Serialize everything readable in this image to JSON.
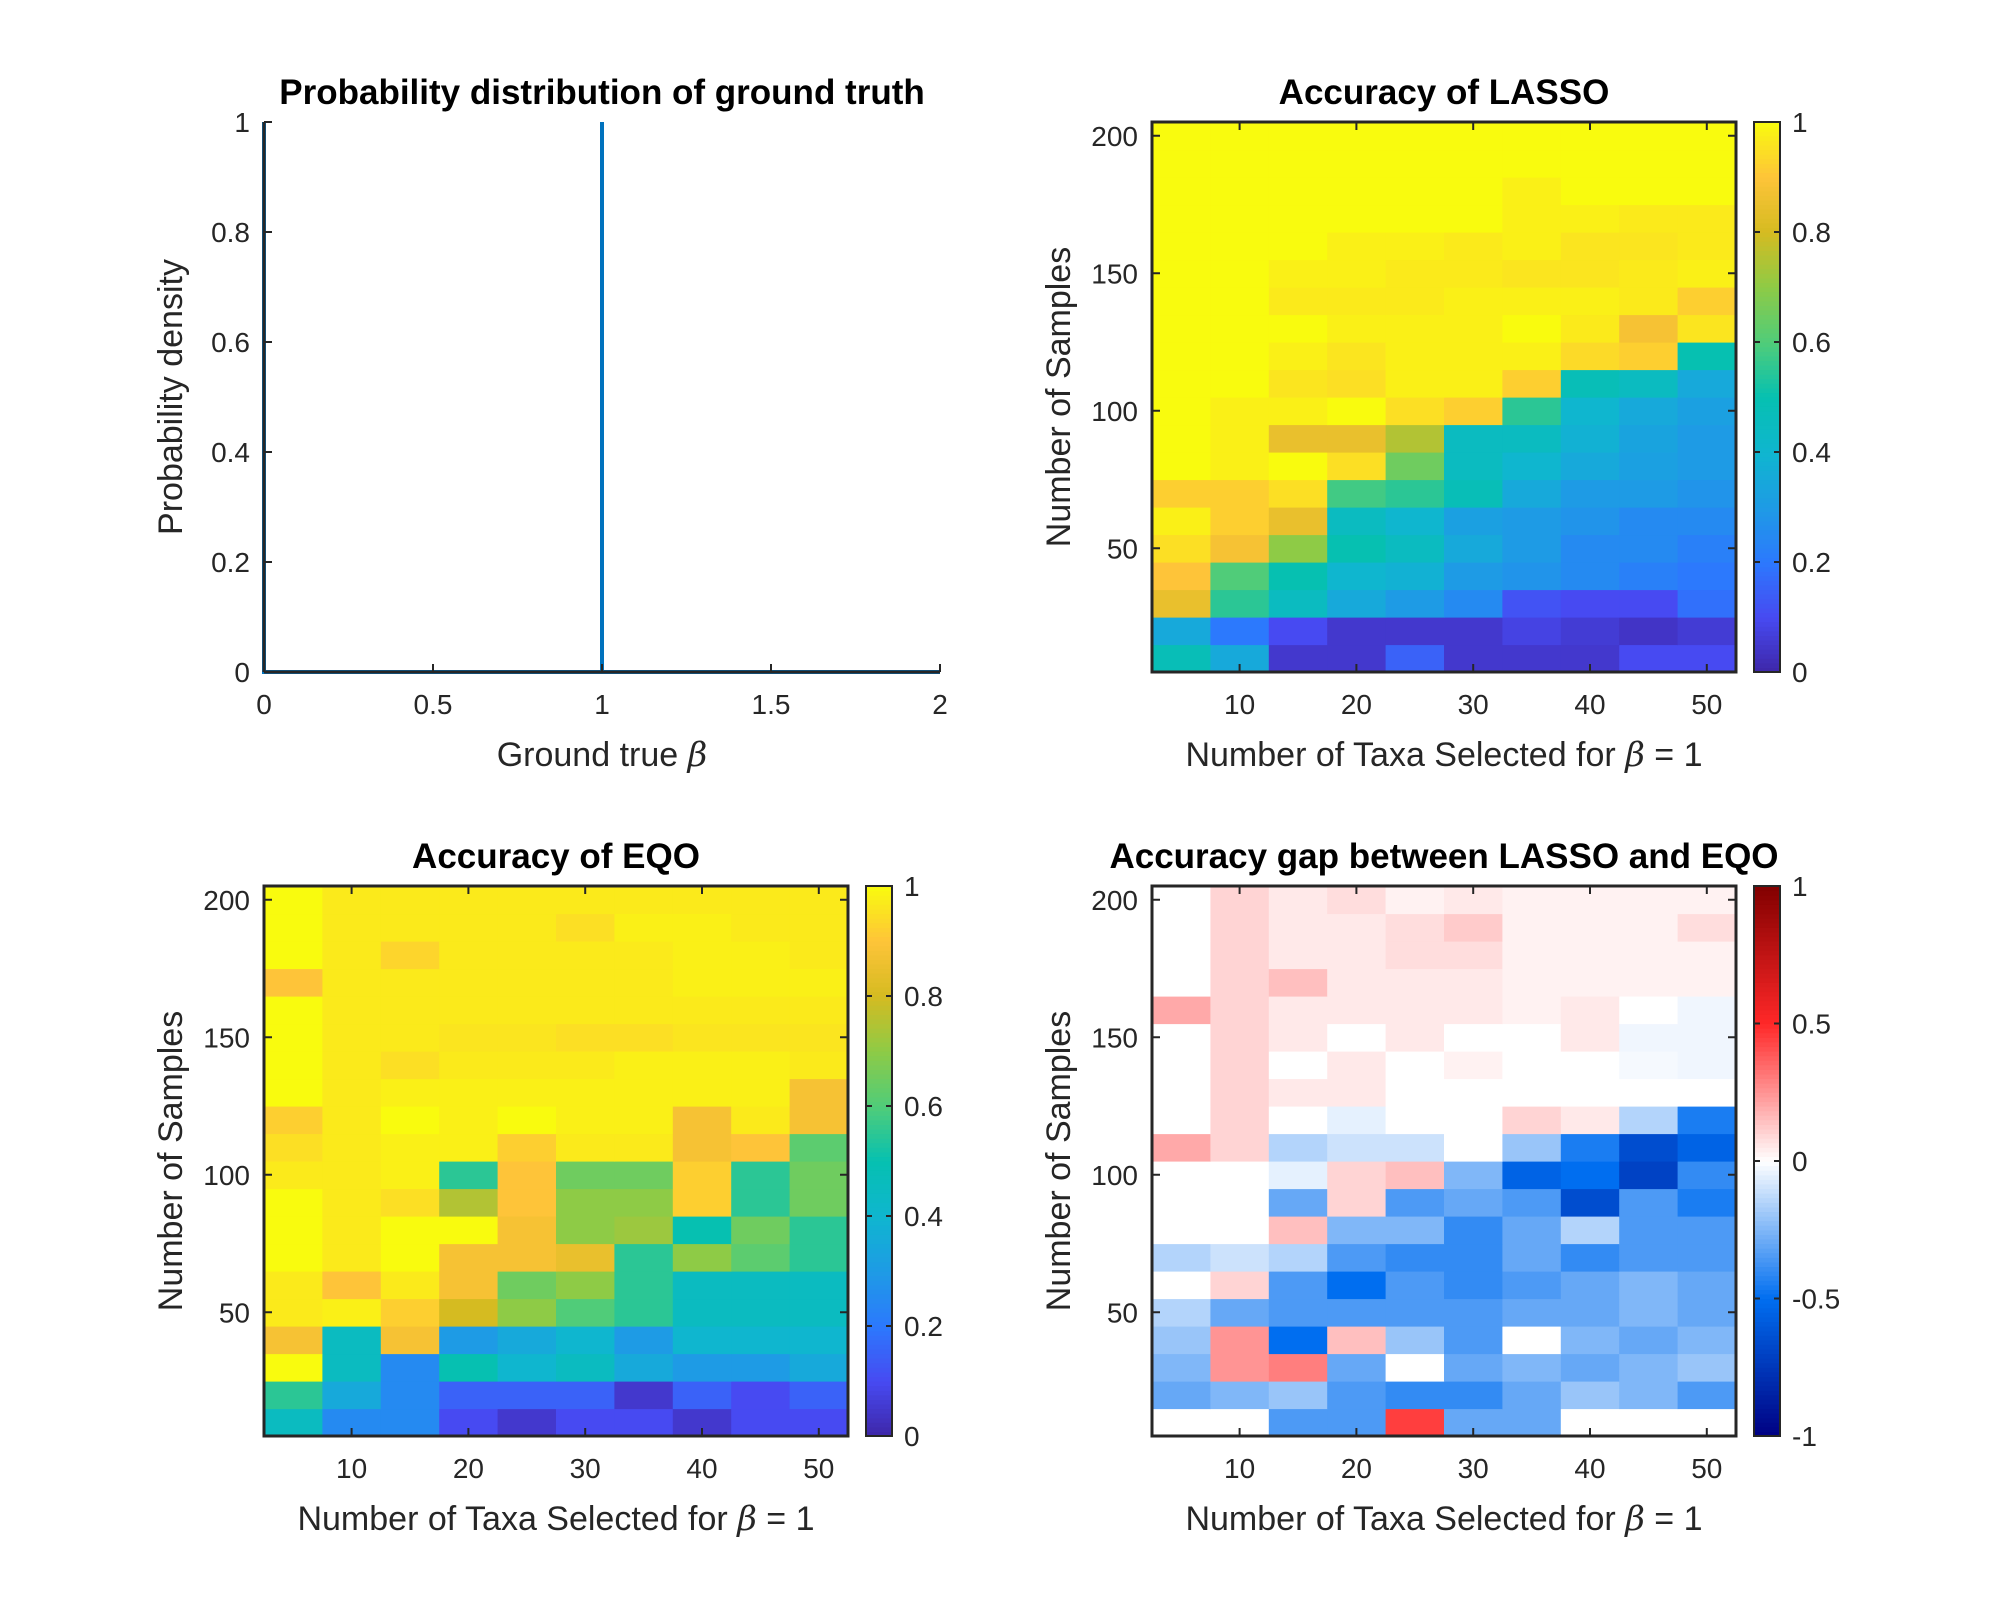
{
  "chart_data": [
    {
      "type": "line",
      "title": "Probability distribution of ground truth",
      "xlabel": "Ground true β",
      "ylabel": "Probability density",
      "xlim": [
        0,
        2
      ],
      "ylim": [
        0,
        1
      ],
      "xticks": [
        0,
        0.5,
        1,
        1.5,
        2
      ],
      "xtick_labels": [
        "0",
        "0.5",
        "1",
        "1.5",
        "2"
      ],
      "yticks": [
        0,
        0.2,
        0.4,
        0.6,
        0.8,
        1
      ],
      "ytick_labels": [
        "0",
        "0.2",
        "0.4",
        "0.6",
        "0.8",
        "1"
      ],
      "series": [
        {
          "x": [
            0,
            0,
            0,
            1,
            1,
            1,
            2
          ],
          "y": [
            1,
            0,
            0,
            0,
            1,
            0,
            0
          ]
        }
      ],
      "grid": false,
      "color": "#0072BD"
    },
    {
      "type": "heatmap",
      "title": "Accuracy of LASSO",
      "xlabel": "Number of Taxa Selected for β = 1",
      "ylabel": "Number of Samples",
      "x": [
        5,
        10,
        15,
        20,
        25,
        30,
        35,
        40,
        45,
        50
      ],
      "y": [
        10,
        20,
        30,
        40,
        50,
        60,
        70,
        80,
        90,
        100,
        110,
        120,
        130,
        140,
        150,
        160,
        170,
        180,
        190,
        200
      ],
      "xticks": [
        10,
        20,
        30,
        40,
        50
      ],
      "xtick_labels": [
        "10",
        "20",
        "30",
        "40",
        "50"
      ],
      "yticks": [
        50,
        100,
        150,
        200
      ],
      "ytick_labels": [
        "50",
        "100",
        "150",
        "200"
      ],
      "colormap": "parula",
      "clim": [
        0,
        1
      ],
      "colorbar_ticks": [
        0,
        0.2,
        0.4,
        0.6,
        0.8,
        1
      ],
      "colorbar_labels": [
        "0",
        "0.2",
        "0.4",
        "0.6",
        "0.8",
        "1"
      ],
      "values": [
        [
          0.48,
          0.35,
          0.05,
          0.05,
          0.15,
          0.05,
          0.05,
          0.05,
          0.1,
          0.1
        ],
        [
          0.35,
          0.2,
          0.1,
          0.05,
          0.05,
          0.05,
          0.08,
          0.06,
          0.04,
          0.06
        ],
        [
          0.85,
          0.55,
          0.45,
          0.35,
          0.3,
          0.25,
          0.12,
          0.1,
          0.1,
          0.18
        ],
        [
          0.9,
          0.6,
          0.5,
          0.4,
          0.38,
          0.3,
          0.28,
          0.25,
          0.22,
          0.2
        ],
        [
          0.95,
          0.88,
          0.7,
          0.5,
          0.45,
          0.35,
          0.3,
          0.25,
          0.25,
          0.22
        ],
        [
          0.98,
          0.92,
          0.85,
          0.45,
          0.4,
          0.32,
          0.3,
          0.28,
          0.25,
          0.25
        ],
        [
          0.92,
          0.92,
          0.95,
          0.58,
          0.55,
          0.48,
          0.35,
          0.3,
          0.3,
          0.28
        ],
        [
          1,
          0.98,
          1,
          0.95,
          0.65,
          0.45,
          0.4,
          0.35,
          0.32,
          0.3
        ],
        [
          1,
          0.98,
          0.85,
          0.85,
          0.75,
          0.45,
          0.45,
          0.38,
          0.33,
          0.3
        ],
        [
          1,
          0.98,
          0.98,
          1,
          0.95,
          0.92,
          0.55,
          0.4,
          0.35,
          0.32
        ],
        [
          1,
          1,
          0.96,
          0.95,
          0.98,
          0.98,
          0.92,
          0.48,
          0.45,
          0.35
        ],
        [
          1,
          1,
          0.98,
          0.96,
          0.98,
          0.98,
          0.98,
          0.94,
          0.92,
          0.5
        ],
        [
          1,
          1,
          1,
          0.98,
          0.98,
          0.98,
          1,
          0.97,
          0.88,
          0.96
        ],
        [
          1,
          1,
          0.97,
          0.97,
          0.97,
          0.98,
          0.98,
          0.98,
          0.97,
          0.92
        ],
        [
          1,
          1,
          0.98,
          0.98,
          0.97,
          0.97,
          0.96,
          0.96,
          0.97,
          0.98
        ],
        [
          1,
          1,
          1,
          0.98,
          0.98,
          0.97,
          0.98,
          0.96,
          0.96,
          0.97
        ],
        [
          1,
          1,
          1,
          1,
          1,
          1,
          0.98,
          0.98,
          0.97,
          0.97
        ],
        [
          1,
          1,
          1,
          1,
          1,
          1,
          0.98,
          1,
          1,
          1
        ],
        [
          1,
          1,
          1,
          1,
          1,
          1,
          1,
          1,
          1,
          1
        ],
        [
          1,
          1,
          1,
          1,
          1,
          1,
          1,
          1,
          1,
          1
        ]
      ]
    },
    {
      "type": "heatmap",
      "title": "Accuracy of EQO",
      "xlabel": "Number of Taxa Selected for β = 1",
      "ylabel": "Number of Samples",
      "x": [
        5,
        10,
        15,
        20,
        25,
        30,
        35,
        40,
        45,
        50
      ],
      "y": [
        10,
        20,
        30,
        40,
        50,
        60,
        70,
        80,
        90,
        100,
        110,
        120,
        130,
        140,
        150,
        160,
        170,
        180,
        190,
        200
      ],
      "xticks": [
        10,
        20,
        30,
        40,
        50
      ],
      "xtick_labels": [
        "10",
        "20",
        "30",
        "40",
        "50"
      ],
      "yticks": [
        50,
        100,
        150,
        200
      ],
      "ytick_labels": [
        "50",
        "100",
        "150",
        "200"
      ],
      "colormap": "parula",
      "clim": [
        0,
        1
      ],
      "colorbar_ticks": [
        0,
        0.2,
        0.4,
        0.6,
        0.8,
        1
      ],
      "colorbar_labels": [
        "0",
        "0.2",
        "0.4",
        "0.6",
        "0.8",
        "1"
      ],
      "values": [
        [
          0.45,
          0.25,
          0.25,
          0.1,
          0.05,
          0.1,
          0.1,
          0.05,
          0.1,
          0.1
        ],
        [
          0.55,
          0.35,
          0.25,
          0.15,
          0.15,
          0.15,
          0.05,
          0.15,
          0.1,
          0.15
        ],
        [
          1,
          0.45,
          0.25,
          0.5,
          0.4,
          0.45,
          0.35,
          0.3,
          0.3,
          0.35
        ],
        [
          0.88,
          0.45,
          0.88,
          0.3,
          0.35,
          0.4,
          0.3,
          0.4,
          0.4,
          0.4
        ],
        [
          0.97,
          0.98,
          0.92,
          0.8,
          0.7,
          0.6,
          0.55,
          0.45,
          0.45,
          0.45
        ],
        [
          0.97,
          0.9,
          0.97,
          0.88,
          0.65,
          0.7,
          0.55,
          0.45,
          0.45,
          0.45
        ],
        [
          1,
          0.97,
          1,
          0.88,
          0.88,
          0.85,
          0.55,
          0.7,
          0.62,
          0.55
        ],
        [
          1,
          0.97,
          1,
          1,
          0.88,
          0.7,
          0.72,
          0.5,
          0.65,
          0.55
        ],
        [
          1,
          0.97,
          0.95,
          0.75,
          0.9,
          0.7,
          0.7,
          0.92,
          0.55,
          0.65
        ],
        [
          0.97,
          0.97,
          0.98,
          0.55,
          0.9,
          0.65,
          0.65,
          0.92,
          0.55,
          0.65
        ],
        [
          0.95,
          0.97,
          0.98,
          0.98,
          0.92,
          0.97,
          0.97,
          0.88,
          0.9,
          0.62
        ],
        [
          0.92,
          0.97,
          1,
          0.98,
          1,
          0.98,
          0.98,
          0.88,
          0.97,
          0.88
        ],
        [
          1,
          0.97,
          0.98,
          0.98,
          0.98,
          0.98,
          0.98,
          0.98,
          0.98,
          0.88
        ],
        [
          1,
          0.97,
          0.95,
          0.97,
          0.97,
          0.97,
          0.98,
          0.98,
          0.98,
          0.97
        ],
        [
          1,
          0.97,
          0.97,
          0.96,
          0.96,
          0.95,
          0.95,
          0.96,
          0.96,
          0.96
        ],
        [
          1,
          0.97,
          0.97,
          0.97,
          0.97,
          0.97,
          0.97,
          0.97,
          0.97,
          0.97
        ],
        [
          0.9,
          0.97,
          0.97,
          0.97,
          0.97,
          0.97,
          0.97,
          0.98,
          0.98,
          0.98
        ],
        [
          1,
          0.97,
          0.93,
          0.97,
          0.97,
          0.97,
          0.97,
          0.98,
          0.98,
          0.97
        ],
        [
          1,
          0.97,
          0.97,
          0.97,
          0.97,
          0.95,
          0.98,
          0.98,
          0.97,
          0.97
        ],
        [
          1,
          0.97,
          0.97,
          0.97,
          0.97,
          0.97,
          0.97,
          0.97,
          0.97,
          0.97
        ]
      ]
    },
    {
      "type": "heatmap",
      "title": "Accuracy gap between LASSO and EQO",
      "xlabel": "Number of Taxa Selected for β = 1",
      "ylabel": "Number of Samples",
      "x": [
        5,
        10,
        15,
        20,
        25,
        30,
        35,
        40,
        45,
        50
      ],
      "y": [
        10,
        20,
        30,
        40,
        50,
        60,
        70,
        80,
        90,
        100,
        110,
        120,
        130,
        140,
        150,
        160,
        170,
        180,
        190,
        200
      ],
      "xticks": [
        10,
        20,
        30,
        40,
        50
      ],
      "xtick_labels": [
        "10",
        "20",
        "30",
        "40",
        "50"
      ],
      "yticks": [
        50,
        100,
        150,
        200
      ],
      "ytick_labels": [
        "50",
        "100",
        "150",
        "200"
      ],
      "colormap": "red-white-blue",
      "clim": [
        -1,
        1
      ],
      "colorbar_ticks": [
        -1,
        -0.5,
        0,
        0.5,
        1
      ],
      "colorbar_labels": [
        "-1",
        "-0.5",
        "0",
        "0.5",
        "1"
      ],
      "values": [
        [
          0,
          0,
          -0.35,
          -0.35,
          0.45,
          -0.3,
          -0.3,
          0,
          0,
          0
        ],
        [
          -0.3,
          -0.25,
          -0.2,
          -0.35,
          -0.4,
          -0.4,
          -0.3,
          -0.2,
          -0.25,
          -0.35
        ],
        [
          -0.25,
          0.25,
          0.3,
          -0.3,
          0,
          -0.3,
          -0.25,
          -0.3,
          -0.25,
          -0.2
        ],
        [
          -0.2,
          0.25,
          -0.5,
          0.15,
          -0.2,
          -0.35,
          0,
          -0.25,
          -0.3,
          -0.25
        ],
        [
          -0.15,
          -0.3,
          -0.35,
          -0.35,
          -0.35,
          -0.35,
          -0.3,
          -0.3,
          -0.25,
          -0.3
        ],
        [
          0,
          0.1,
          -0.35,
          -0.5,
          -0.35,
          -0.4,
          -0.35,
          -0.3,
          -0.25,
          -0.3
        ],
        [
          -0.15,
          -0.1,
          -0.15,
          -0.35,
          -0.4,
          -0.4,
          -0.3,
          -0.4,
          -0.35,
          -0.35
        ],
        [
          0,
          0,
          0.15,
          -0.25,
          -0.25,
          -0.4,
          -0.3,
          -0.15,
          -0.35,
          -0.35
        ],
        [
          0,
          0,
          -0.3,
          0.1,
          -0.35,
          -0.3,
          -0.35,
          -0.65,
          -0.35,
          -0.45
        ],
        [
          0,
          0,
          -0.05,
          0.1,
          0.15,
          -0.25,
          -0.55,
          -0.5,
          -0.7,
          -0.4
        ],
        [
          0.2,
          0.1,
          -0.15,
          -0.1,
          -0.1,
          0,
          -0.2,
          -0.45,
          -0.65,
          -0.55
        ],
        [
          0,
          0.1,
          0,
          -0.05,
          0,
          0,
          0.1,
          0.05,
          -0.15,
          -0.45
        ],
        [
          0,
          0.1,
          0.05,
          0.05,
          0,
          0,
          0,
          0,
          0,
          0
        ],
        [
          0,
          0.1,
          0,
          0.05,
          0,
          0.03,
          0,
          0,
          -0.02,
          -0.03
        ],
        [
          0,
          0.1,
          0.05,
          0,
          0.05,
          0,
          0,
          0.05,
          -0.03,
          -0.03
        ],
        [
          0.2,
          0.1,
          0.05,
          0.05,
          0.05,
          0.05,
          0.03,
          0.05,
          0,
          -0.03
        ],
        [
          0,
          0.1,
          0.15,
          0.05,
          0.05,
          0.05,
          0.03,
          0.03,
          0.03,
          0.03
        ],
        [
          0,
          0.1,
          0.05,
          0.05,
          0.08,
          0.08,
          0.03,
          0.03,
          0.03,
          0.03
        ],
        [
          0,
          0.1,
          0.05,
          0.05,
          0.08,
          0.12,
          0.03,
          0.03,
          0.03,
          0.08
        ],
        [
          0,
          0.1,
          0.05,
          0.08,
          0.03,
          0.05,
          0.03,
          0.03,
          0.03,
          0.03
        ]
      ]
    }
  ]
}
